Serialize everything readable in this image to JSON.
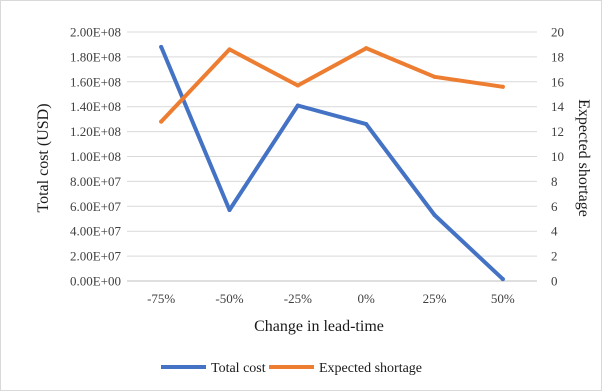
{
  "chart_data": {
    "type": "line",
    "categories": [
      "-75%",
      "-50%",
      "-25%",
      "0%",
      "25%",
      "50%"
    ],
    "xlabel": "Change in lead-time",
    "ylabel_left": "Total cost (USD)",
    "ylabel_right": "Expected shortage",
    "left_axis": {
      "ylim": [
        0,
        200000000
      ],
      "tick_labels": [
        "0.00E+00",
        "2.00E+07",
        "4.00E+07",
        "6.00E+07",
        "8.00E+07",
        "1.00E+08",
        "1.20E+08",
        "1.40E+08",
        "1.60E+08",
        "1.80E+08",
        "2.00E+08"
      ]
    },
    "right_axis": {
      "ylim": [
        0,
        20
      ],
      "tick_labels": [
        "0",
        "2",
        "4",
        "6",
        "8",
        "10",
        "12",
        "14",
        "16",
        "18",
        "20"
      ]
    },
    "grid": "horizontal",
    "legend_position": "bottom",
    "series": [
      {
        "name": "Total cost",
        "axis": "left",
        "color": "#4472c4",
        "values": [
          188000000,
          57000000,
          141000000,
          126000000,
          53000000,
          1500000
        ]
      },
      {
        "name": "Expected shortage",
        "axis": "right",
        "color": "#ed7d31",
        "values": [
          12.8,
          18.6,
          15.7,
          18.7,
          16.4,
          15.6
        ]
      }
    ]
  }
}
